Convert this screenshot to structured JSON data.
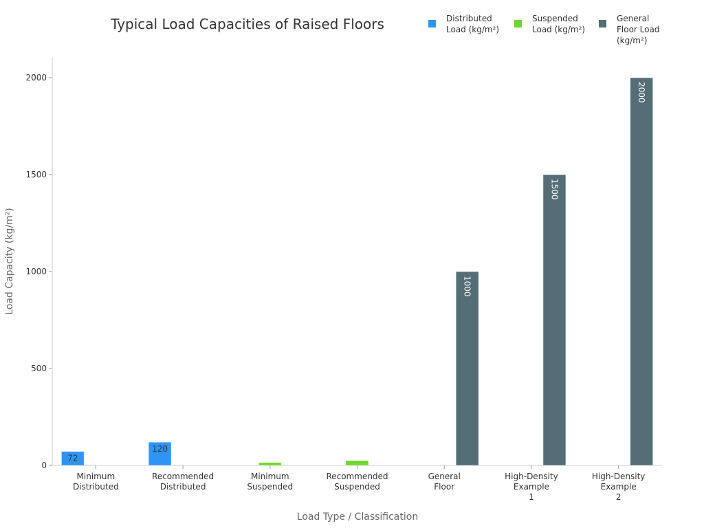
{
  "chart_data": {
    "type": "bar",
    "title": "Typical Load Capacities of Raised Floors",
    "xlabel": "Load Type / Classification",
    "ylabel": "Load Capacity (kg/m²)",
    "ylim": [
      0,
      2100
    ],
    "yticks": [
      0,
      500,
      1000,
      1500,
      2000
    ],
    "grid": false,
    "legend_position": "top-right",
    "categories": [
      [
        "Minimum",
        "Distributed"
      ],
      [
        "Recommended",
        "Distributed"
      ],
      [
        "Minimum",
        "Suspended"
      ],
      [
        "Recommended",
        "Suspended"
      ],
      [
        "General",
        "Floor"
      ],
      [
        "High-Density",
        "Example",
        "1"
      ],
      [
        "High-Density",
        "Example",
        "2"
      ]
    ],
    "series": [
      {
        "name": [
          "Distributed",
          "Load (kg/m²)"
        ],
        "color": "#2f94f5",
        "values": [
          72,
          120,
          null,
          null,
          null,
          null,
          null
        ],
        "labels": [
          "72",
          "120",
          "",
          "",
          "",
          "",
          ""
        ]
      },
      {
        "name": [
          "Suspended",
          "Load (kg/m²)"
        ],
        "color": "#6ed62d",
        "values": [
          null,
          null,
          15,
          25,
          null,
          null,
          null
        ],
        "labels": [
          "",
          "",
          "",
          "",
          "",
          "",
          ""
        ]
      },
      {
        "name": [
          "General",
          "Floor Load",
          "(kg/m²)"
        ],
        "color": "#546d77",
        "values": [
          null,
          null,
          null,
          null,
          1000,
          1500,
          2000
        ],
        "labels": [
          "",
          "",
          "",
          "",
          "1000",
          "1500",
          "2000"
        ]
      }
    ]
  }
}
